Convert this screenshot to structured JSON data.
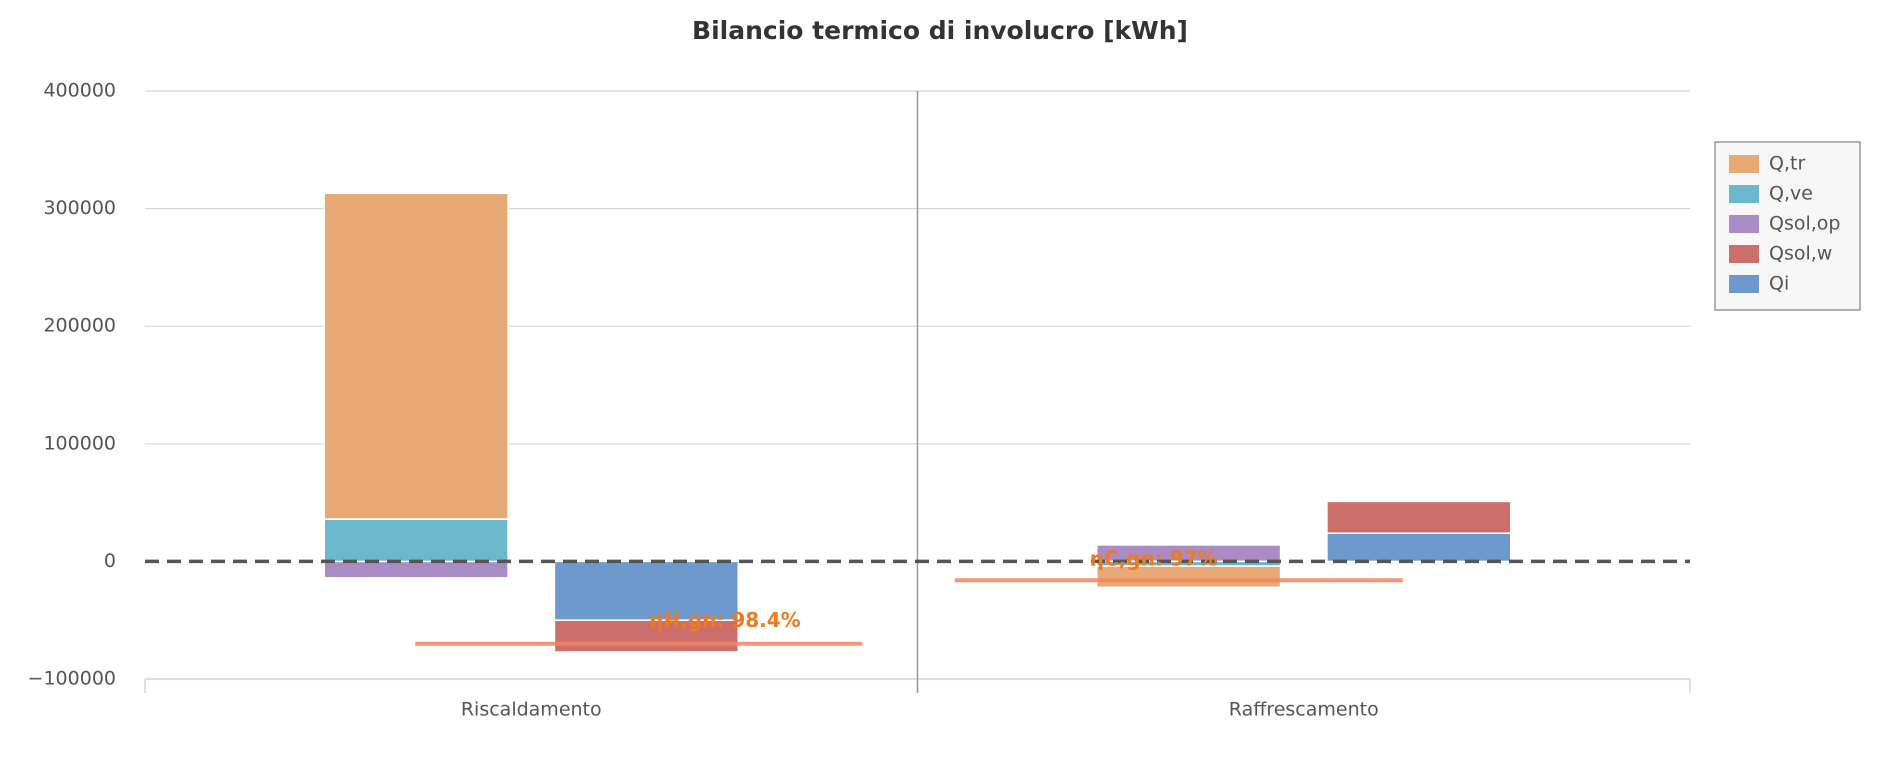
{
  "chart_data": {
    "type": "bar",
    "stacked": true,
    "title": "Bilancio termico di involucro [kWh]",
    "categories": [
      "Riscaldamento",
      "Raffrescamento"
    ],
    "series": [
      {
        "name": "Q,tr",
        "color": "#e8a975",
        "stack": 0,
        "values": [
          277000,
          -18000
        ]
      },
      {
        "name": "Q,ve",
        "color": "#6bb8cc",
        "stack": 0,
        "values": [
          36000,
          -4000
        ]
      },
      {
        "name": "Qsol,op",
        "color": "#a98bc6",
        "stack": 0,
        "values": [
          -14000,
          14000
        ]
      },
      {
        "name": "Qsol,w",
        "color": "#cc6e6b",
        "stack": 1,
        "values": [
          -27000,
          27000
        ]
      },
      {
        "name": "Qi",
        "color": "#6e99cc",
        "stack": 1,
        "values": [
          -50000,
          24000
        ]
      }
    ],
    "ylim": [
      -100000,
      400000
    ],
    "yticks": [
      {
        "value": -100000,
        "label": "−100000"
      },
      0,
      100000,
      200000,
      300000,
      400000
    ],
    "grid": true,
    "legend": "right",
    "annotations": [
      {
        "label": "ηH,gn: 98.4%",
        "y": -70000,
        "color": "#f4845f"
      },
      {
        "label": "ηC,gn: 97%",
        "y": -16000,
        "color": "#f4845f"
      }
    ]
  }
}
